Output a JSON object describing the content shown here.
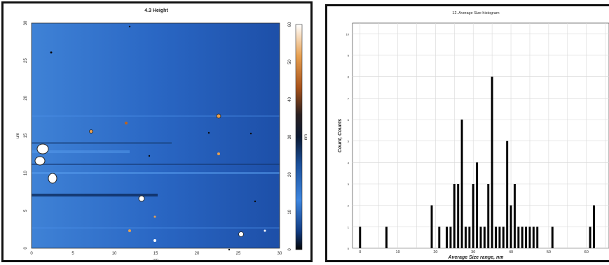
{
  "chart_data": [
    {
      "type": "heatmap",
      "title": "4.3 Height",
      "xlabel": "um",
      "ylabel": "um",
      "xlim": [
        0,
        30
      ],
      "ylim": [
        0,
        30
      ],
      "x_ticks": [
        "0",
        "5",
        "10",
        "15",
        "20",
        "25",
        "30"
      ],
      "y_ticks": [
        "0",
        "5",
        "10",
        "15",
        "20",
        "25",
        "30"
      ],
      "colorbar": {
        "label": "nm",
        "range": [
          0,
          60
        ],
        "ticks": [
          "0",
          "10",
          "20",
          "30",
          "40",
          "50",
          "60"
        ],
        "colors": [
          "#0a0a0a",
          "#1f5fc0",
          "#3d86e0",
          "#0c1d3d",
          "#2a2a2a",
          "#c0641a",
          "#f0c070",
          "#ffffff"
        ]
      },
      "grid": false
    },
    {
      "type": "bar",
      "title": "12. Average Size histogram",
      "xlabel": "Average Size range, nm",
      "ylabel": "Count, Counts",
      "xlim": [
        -2,
        66
      ],
      "ylim": [
        0,
        10.5
      ],
      "x_ticks": [
        "0",
        "10",
        "20",
        "30",
        "40",
        "50",
        "60"
      ],
      "y_ticks": [
        "0",
        "1",
        "2",
        "3",
        "4",
        "5",
        "6",
        "7",
        "8",
        "9",
        "10"
      ],
      "grid": true,
      "x": [
        0,
        7,
        19,
        21,
        23,
        24,
        25,
        26,
        27,
        28,
        29,
        30,
        31,
        32,
        33,
        34,
        35,
        36,
        37,
        38,
        39,
        40,
        41,
        42,
        43,
        44,
        45,
        46,
        47,
        51,
        61,
        62
      ],
      "values": [
        1,
        1,
        2,
        1,
        1,
        1,
        3,
        3,
        6,
        1,
        1,
        3,
        4,
        1,
        1,
        3,
        8,
        1,
        1,
        1,
        5,
        2,
        3,
        1,
        1,
        1,
        1,
        1,
        1,
        1,
        1,
        2
      ]
    }
  ]
}
